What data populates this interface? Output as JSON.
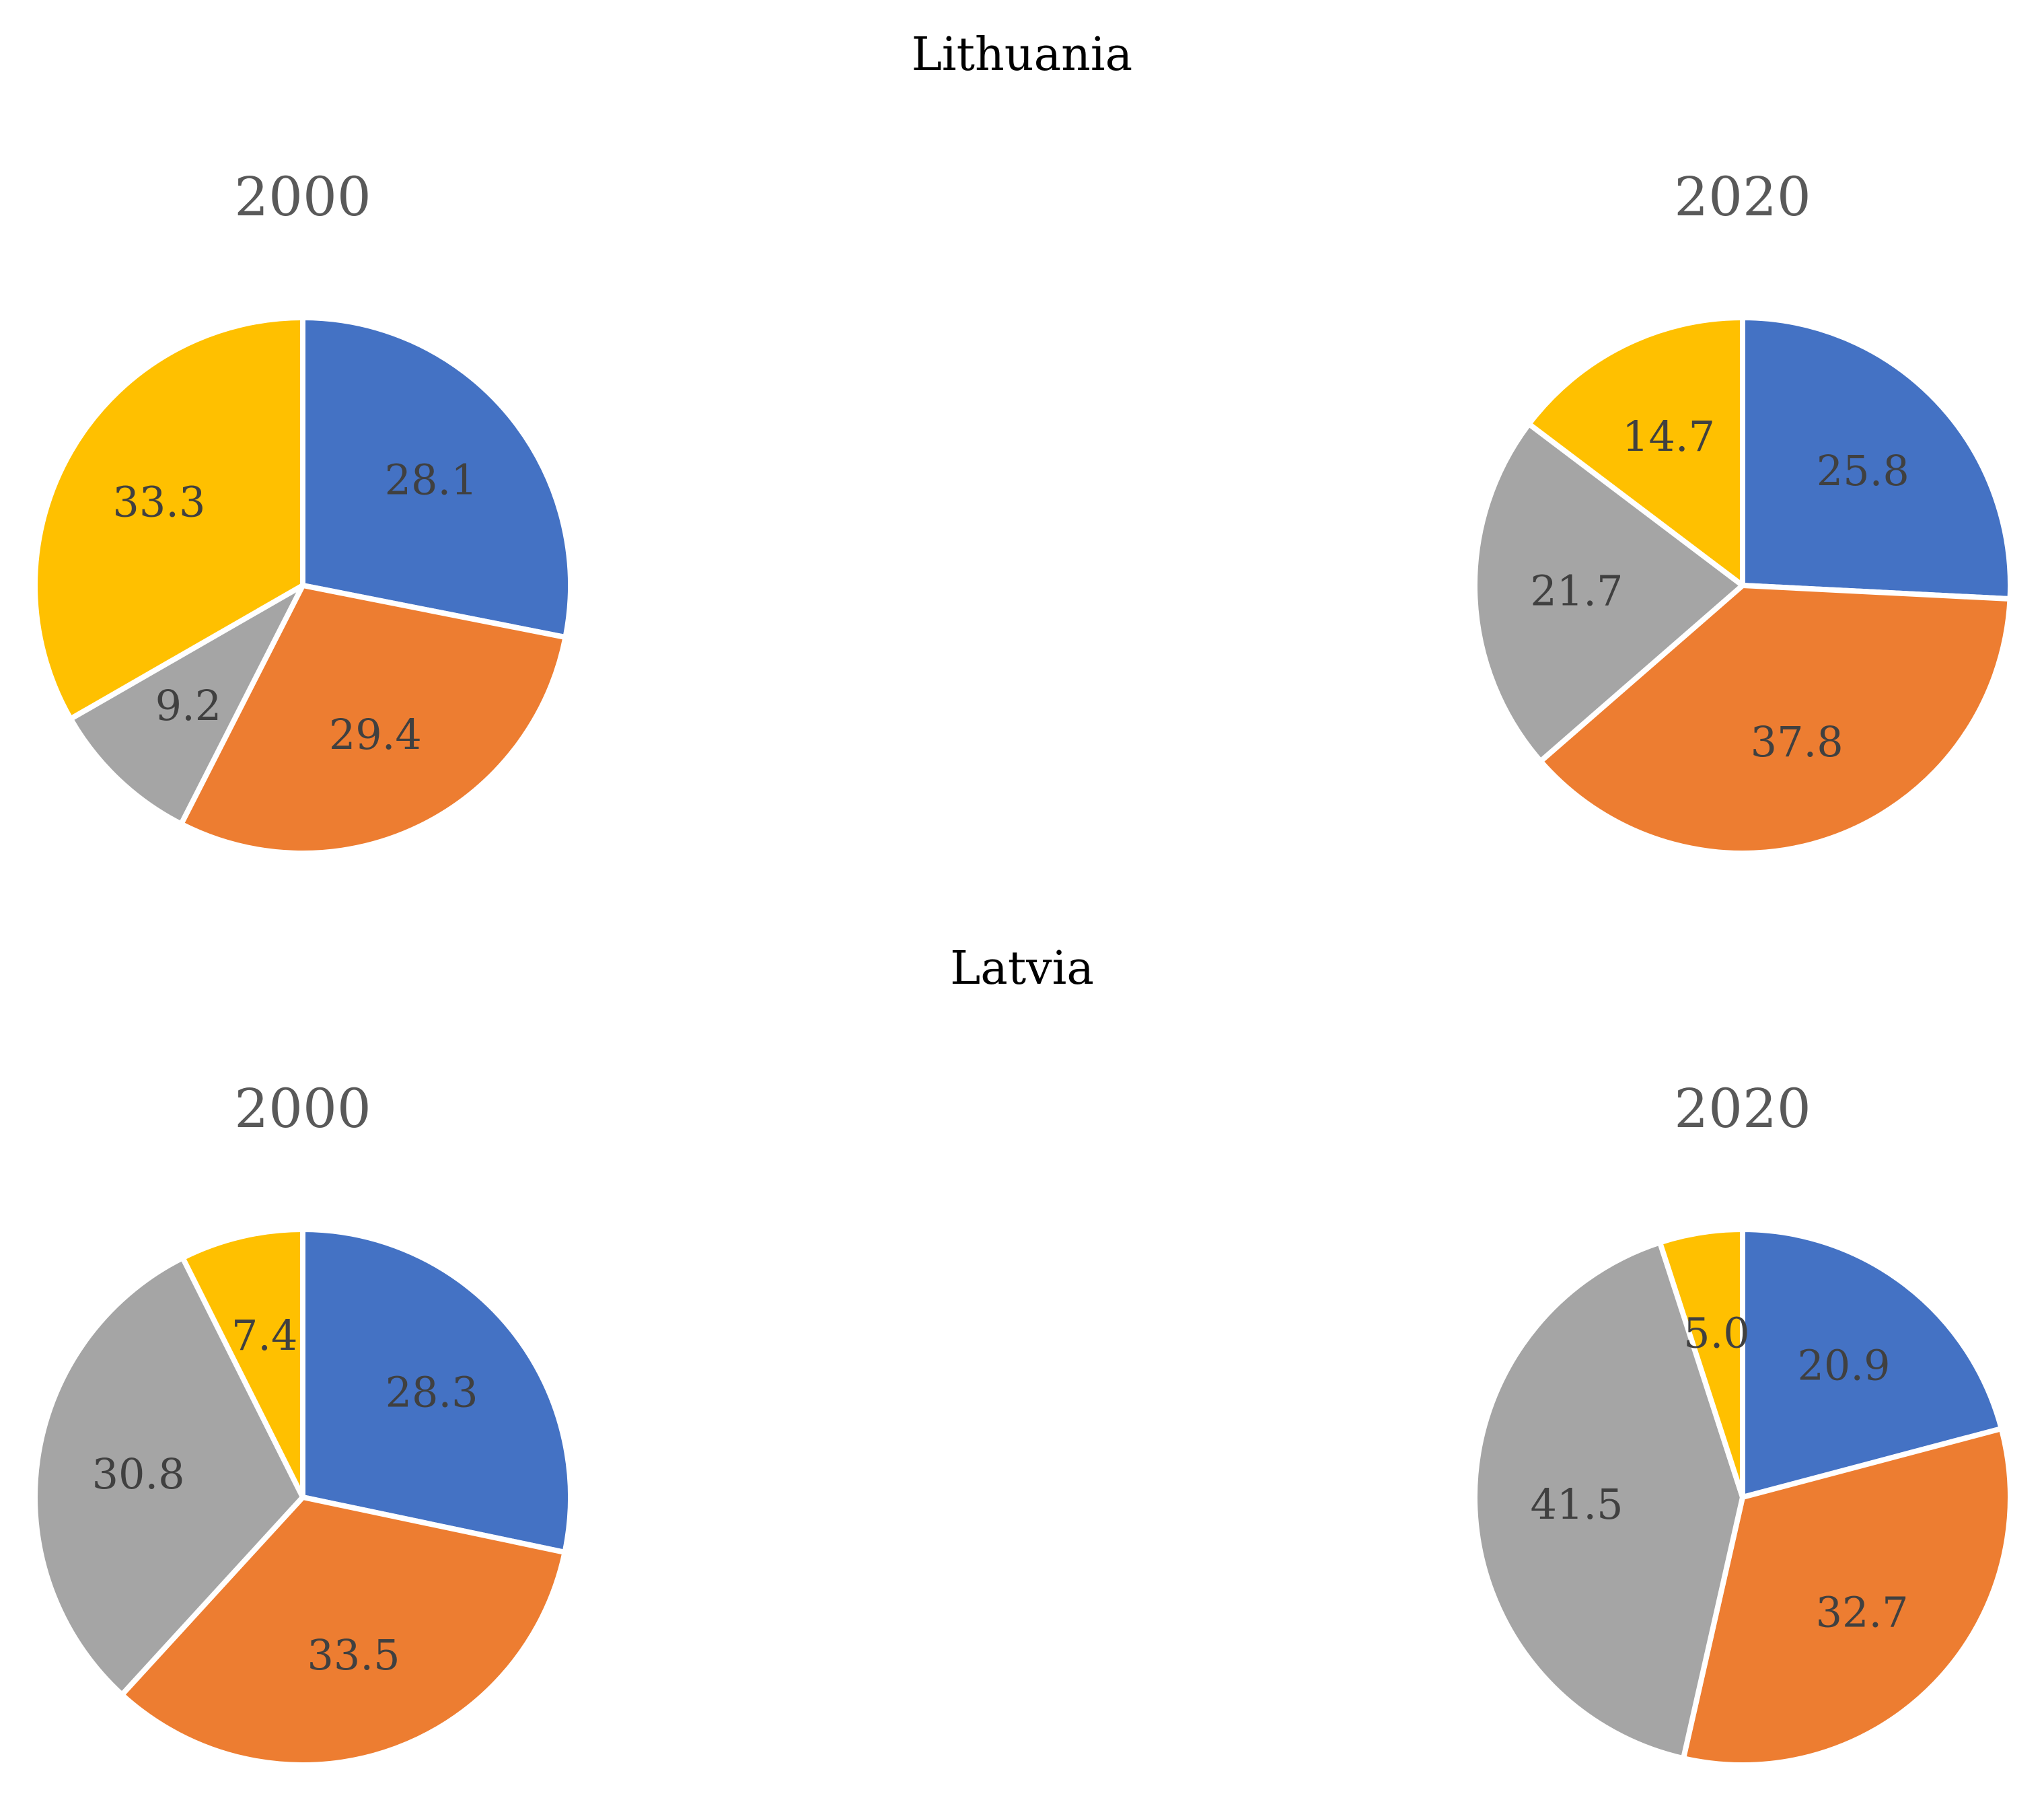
{
  "sections": [
    {
      "title": "Lithuania"
    },
    {
      "title": "Latvia"
    }
  ],
  "colors": {
    "series": [
      "#4472C4",
      "#ED7D31",
      "#A5A5A5",
      "#FFC000"
    ],
    "slice_border": "#FFFFFF",
    "title_text": "#595959",
    "label_text": "#404040"
  },
  "chart_data": [
    {
      "type": "pie",
      "group": "Lithuania",
      "title": "2000",
      "slices": [
        {
          "value": 28.1,
          "label": "28.1"
        },
        {
          "value": 29.4,
          "label": "29.4"
        },
        {
          "value": 9.2,
          "label": "9.2"
        },
        {
          "value": 33.3,
          "label": "33.3"
        }
      ]
    },
    {
      "type": "pie",
      "group": "Lithuania",
      "title": "2020",
      "slices": [
        {
          "value": 25.8,
          "label": "25.8"
        },
        {
          "value": 37.8,
          "label": "37.8"
        },
        {
          "value": 21.7,
          "label": "21.7"
        },
        {
          "value": 14.7,
          "label": "14.7"
        }
      ]
    },
    {
      "type": "pie",
      "group": "Latvia",
      "title": "2000",
      "slices": [
        {
          "value": 28.3,
          "label": "28.3"
        },
        {
          "value": 33.5,
          "label": "33.5"
        },
        {
          "value": 30.8,
          "label": "30.8"
        },
        {
          "value": 7.4,
          "label": "7.4"
        }
      ]
    },
    {
      "type": "pie",
      "group": "Latvia",
      "title": "2020",
      "slices": [
        {
          "value": 20.9,
          "label": "20.9"
        },
        {
          "value": 32.7,
          "label": "32.7"
        },
        {
          "value": 41.5,
          "label": "41.5"
        },
        {
          "value": 5.0,
          "label": "5.0"
        }
      ]
    }
  ]
}
